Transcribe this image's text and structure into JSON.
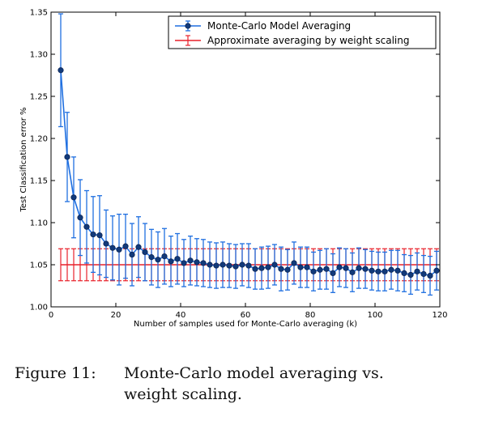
{
  "chart_data": {
    "type": "line",
    "xlabel": "Number of samples used for Monte-Carlo averaging (k)",
    "ylabel": "Test Classification error %",
    "xlim": [
      0,
      120
    ],
    "ylim": [
      1.0,
      1.35
    ],
    "x_ticks": [
      0,
      20,
      40,
      60,
      80,
      100,
      120
    ],
    "y_ticks": [
      1.0,
      1.05,
      1.1,
      1.15,
      1.2,
      1.25,
      1.3,
      1.35
    ],
    "x_tick_labels": [
      "0",
      "20",
      "40",
      "60",
      "80",
      "100",
      "120"
    ],
    "y_tick_labels": [
      "1.00",
      "1.05",
      "1.10",
      "1.15",
      "1.20",
      "1.25",
      "1.30",
      "1.35"
    ],
    "grid": false,
    "legend_position": "top-right",
    "series": [
      {
        "name": "Monte-Carlo Model Averaging",
        "color": "#1f6fe0",
        "marker_color": "#123a7a",
        "x": [
          3,
          5,
          7,
          9,
          11,
          13,
          15,
          17,
          19,
          21,
          23,
          25,
          27,
          29,
          31,
          33,
          35,
          37,
          39,
          41,
          43,
          45,
          47,
          49,
          51,
          53,
          55,
          57,
          59,
          61,
          63,
          65,
          67,
          69,
          71,
          73,
          75,
          77,
          79,
          81,
          83,
          85,
          87,
          89,
          91,
          93,
          95,
          97,
          99,
          101,
          103,
          105,
          107,
          109,
          111,
          113,
          115,
          117,
          119
        ],
        "y": [
          1.281,
          1.178,
          1.13,
          1.106,
          1.095,
          1.086,
          1.085,
          1.075,
          1.07,
          1.068,
          1.072,
          1.062,
          1.071,
          1.065,
          1.059,
          1.056,
          1.06,
          1.054,
          1.057,
          1.052,
          1.055,
          1.053,
          1.052,
          1.05,
          1.049,
          1.05,
          1.049,
          1.048,
          1.05,
          1.049,
          1.045,
          1.046,
          1.047,
          1.05,
          1.045,
          1.044,
          1.052,
          1.047,
          1.047,
          1.042,
          1.044,
          1.045,
          1.04,
          1.047,
          1.046,
          1.041,
          1.046,
          1.045,
          1.043,
          1.042,
          1.042,
          1.044,
          1.043,
          1.04,
          1.038,
          1.042,
          1.039,
          1.037,
          1.043
        ],
        "err": [
          0.067,
          0.053,
          0.048,
          0.045,
          0.043,
          0.045,
          0.047,
          0.04,
          0.038,
          0.042,
          0.038,
          0.037,
          0.036,
          0.034,
          0.033,
          0.033,
          0.033,
          0.03,
          0.03,
          0.028,
          0.029,
          0.028,
          0.028,
          0.027,
          0.027,
          0.027,
          0.026,
          0.026,
          0.025,
          0.026,
          0.024,
          0.025,
          0.025,
          0.024,
          0.026,
          0.024,
          0.025,
          0.024,
          0.024,
          0.023,
          0.023,
          0.024,
          0.023,
          0.023,
          0.023,
          0.023,
          0.024,
          0.023,
          0.023,
          0.023,
          0.023,
          0.023,
          0.024,
          0.022,
          0.023,
          0.022,
          0.022,
          0.023,
          0.023
        ]
      },
      {
        "name": "Approximate averaging by weight scaling",
        "color": "#e8202a",
        "x": [
          3,
          5,
          7,
          9,
          11,
          13,
          15,
          17,
          19,
          21,
          23,
          25,
          27,
          29,
          31,
          33,
          35,
          37,
          39,
          41,
          43,
          45,
          47,
          49,
          51,
          53,
          55,
          57,
          59,
          61,
          63,
          65,
          67,
          69,
          71,
          73,
          75,
          77,
          79,
          81,
          83,
          85,
          87,
          89,
          91,
          93,
          95,
          97,
          99,
          101,
          103,
          105,
          107,
          109,
          111,
          113,
          115,
          117,
          119
        ],
        "y": 1.05,
        "err": 0.019
      }
    ]
  },
  "caption": {
    "label": "Figure 11:",
    "text_line1": "Monte-Carlo model averaging vs.",
    "text_line2": "weight scaling."
  }
}
